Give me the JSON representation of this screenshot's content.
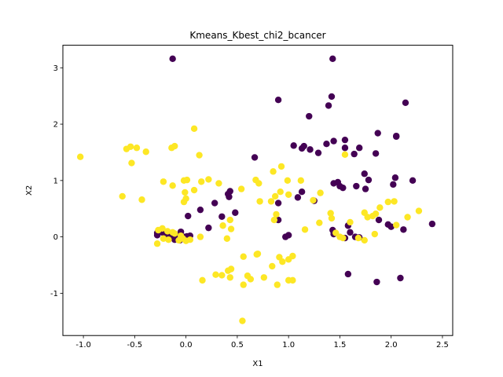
{
  "chart_data": {
    "type": "scatter",
    "title": "Kmeans_Kbest_chi2_bcancer",
    "xlabel": "X1",
    "ylabel": "X2",
    "xlim": [
      -1.2,
      2.6
    ],
    "ylim": [
      -1.75,
      3.4
    ],
    "xticks": [
      "-1.0",
      "-0.5",
      "0.0",
      "0.5",
      "1.0",
      "1.5",
      "2.0",
      "2.5"
    ],
    "yticks": [
      "-1",
      "0",
      "1",
      "2",
      "3"
    ],
    "grid": false,
    "legend": "none",
    "series": [
      {
        "color": "#440154",
        "points": [
          [
            -0.13,
            3.16
          ],
          [
            1.43,
            3.16
          ],
          [
            0.9,
            2.43
          ],
          [
            1.42,
            2.49
          ],
          [
            1.39,
            2.33
          ],
          [
            2.14,
            2.38
          ],
          [
            1.2,
            2.14
          ],
          [
            1.55,
            1.72
          ],
          [
            1.44,
            1.7
          ],
          [
            1.37,
            1.65
          ],
          [
            1.55,
            1.58
          ],
          [
            1.69,
            1.58
          ],
          [
            1.05,
            1.62
          ],
          [
            1.13,
            1.57
          ],
          [
            1.21,
            1.55
          ],
          [
            1.15,
            1.61
          ],
          [
            1.29,
            1.49
          ],
          [
            1.87,
            1.84
          ],
          [
            2.05,
            1.78
          ],
          [
            1.64,
            1.47
          ],
          [
            1.85,
            1.48
          ],
          [
            2.05,
            1.79
          ],
          [
            0.67,
            1.41
          ],
          [
            1.74,
            1.12
          ],
          [
            2.04,
            1.05
          ],
          [
            2.21,
            1.0
          ],
          [
            1.78,
            1.01
          ],
          [
            1.44,
            0.95
          ],
          [
            1.48,
            0.97
          ],
          [
            1.53,
            0.87
          ],
          [
            1.66,
            0.9
          ],
          [
            1.25,
            0.64
          ],
          [
            1.13,
            0.8
          ],
          [
            1.09,
            0.7
          ],
          [
            0.9,
            0.6
          ],
          [
            1.5,
            0.9
          ],
          [
            1.75,
            0.85
          ],
          [
            2.02,
            0.93
          ],
          [
            0.43,
            0.81
          ],
          [
            0.41,
            0.76
          ],
          [
            0.42,
            0.71
          ],
          [
            0.28,
            0.6
          ],
          [
            0.35,
            0.36
          ],
          [
            0.14,
            0.48
          ],
          [
            0.22,
            0.16
          ],
          [
            0.02,
            0.37
          ],
          [
            -0.05,
            0.09
          ],
          [
            -0.09,
            0.02
          ],
          [
            -0.1,
            -0.02
          ],
          [
            -0.12,
            0.0
          ],
          [
            -0.15,
            0.03
          ],
          [
            -0.17,
            0.01
          ],
          [
            -0.19,
            0.06
          ],
          [
            -0.2,
            0.05
          ],
          [
            -0.11,
            -0.05
          ],
          [
            -0.06,
            -0.06
          ],
          [
            -0.02,
            0.0
          ],
          [
            0.01,
            0.01
          ],
          [
            0.04,
            0.02
          ],
          [
            -0.28,
            0.03
          ],
          [
            -0.28,
            0.07
          ],
          [
            -0.23,
            0.08
          ],
          [
            0.48,
            0.43
          ],
          [
            0.9,
            0.3
          ],
          [
            0.97,
            0.0
          ],
          [
            1.0,
            0.03
          ],
          [
            1.58,
            0.2
          ],
          [
            1.6,
            0.08
          ],
          [
            1.55,
            -0.02
          ],
          [
            1.65,
            0.0
          ],
          [
            1.69,
            -0.01
          ],
          [
            1.44,
            0.05
          ],
          [
            1.43,
            0.12
          ],
          [
            1.97,
            0.22
          ],
          [
            1.88,
            0.3
          ],
          [
            2.0,
            0.18
          ],
          [
            2.12,
            0.13
          ],
          [
            2.4,
            0.23
          ],
          [
            1.58,
            -0.66
          ],
          [
            1.86,
            -0.8
          ],
          [
            2.09,
            -0.73
          ]
        ]
      },
      {
        "color": "#fde725",
        "points": [
          [
            -1.03,
            1.42
          ],
          [
            -0.58,
            1.56
          ],
          [
            -0.54,
            1.6
          ],
          [
            -0.48,
            1.58
          ],
          [
            -0.39,
            1.51
          ],
          [
            -0.14,
            1.58
          ],
          [
            -0.11,
            1.61
          ],
          [
            -0.53,
            1.31
          ],
          [
            0.08,
            1.92
          ],
          [
            0.13,
            1.45
          ],
          [
            -0.62,
            0.72
          ],
          [
            -0.43,
            0.66
          ],
          [
            -0.22,
            0.98
          ],
          [
            -0.13,
            0.91
          ],
          [
            -0.02,
            1.0
          ],
          [
            0.01,
            1.01
          ],
          [
            0.15,
            0.98
          ],
          [
            0.22,
            1.02
          ],
          [
            0.32,
            0.95
          ],
          [
            -0.01,
            0.79
          ],
          [
            0.0,
            0.68
          ],
          [
            -0.02,
            0.62
          ],
          [
            0.08,
            0.83
          ],
          [
            0.54,
            0.85
          ],
          [
            0.68,
            1.01
          ],
          [
            0.71,
            0.95
          ],
          [
            0.85,
            1.16
          ],
          [
            0.93,
            1.25
          ],
          [
            0.87,
            0.72
          ],
          [
            0.92,
            0.8
          ],
          [
            0.83,
            0.63
          ],
          [
            0.72,
            0.63
          ],
          [
            0.99,
            1.0
          ],
          [
            1.0,
            0.75
          ],
          [
            1.12,
            1.0
          ],
          [
            1.31,
            0.78
          ],
          [
            1.24,
            0.65
          ],
          [
            1.55,
            1.46
          ],
          [
            1.41,
            0.42
          ],
          [
            1.42,
            0.33
          ],
          [
            1.6,
            0.26
          ],
          [
            1.74,
            0.43
          ],
          [
            1.77,
            0.35
          ],
          [
            1.82,
            0.37
          ],
          [
            1.89,
            0.52
          ],
          [
            1.97,
            0.62
          ],
          [
            2.03,
            0.63
          ],
          [
            2.16,
            0.35
          ],
          [
            2.27,
            0.46
          ],
          [
            1.85,
            0.41
          ],
          [
            1.74,
            -0.06
          ],
          [
            1.84,
            0.05
          ],
          [
            2.05,
            0.21
          ],
          [
            1.46,
            0.07
          ],
          [
            1.5,
            0.0
          ],
          [
            1.53,
            -0.02
          ],
          [
            1.68,
            -0.02
          ],
          [
            0.86,
            0.3
          ],
          [
            0.88,
            0.4
          ],
          [
            1.16,
            0.13
          ],
          [
            1.3,
            0.25
          ],
          [
            0.44,
            0.14
          ],
          [
            0.43,
            0.3
          ],
          [
            0.4,
            -0.03
          ],
          [
            0.36,
            0.2
          ],
          [
            0.14,
            0.0
          ],
          [
            0.04,
            -0.05
          ],
          [
            -0.03,
            -0.03
          ],
          [
            -0.07,
            -0.06
          ],
          [
            -0.13,
            0.08
          ],
          [
            -0.18,
            0.1
          ],
          [
            -0.23,
            0.15
          ],
          [
            -0.27,
            0.12
          ],
          [
            -0.28,
            -0.12
          ],
          [
            -0.22,
            -0.03
          ],
          [
            -0.17,
            -0.05
          ],
          [
            -0.11,
            0.06
          ],
          [
            0.0,
            -0.07
          ],
          [
            -0.05,
            0.02
          ],
          [
            0.56,
            -0.35
          ],
          [
            0.6,
            -0.69
          ],
          [
            0.63,
            -0.75
          ],
          [
            0.7,
            -0.3
          ],
          [
            0.69,
            -0.31
          ],
          [
            0.76,
            -0.72
          ],
          [
            0.84,
            -0.52
          ],
          [
            0.89,
            -0.85
          ],
          [
            0.91,
            -0.36
          ],
          [
            1.0,
            -0.77
          ],
          [
            1.0,
            -0.4
          ],
          [
            1.04,
            -0.34
          ],
          [
            1.04,
            -0.77
          ],
          [
            0.94,
            -0.44
          ],
          [
            0.44,
            -0.57
          ],
          [
            0.41,
            -0.6
          ],
          [
            0.35,
            -0.68
          ],
          [
            0.29,
            -0.67
          ],
          [
            0.43,
            -0.72
          ],
          [
            0.16,
            -0.77
          ],
          [
            0.56,
            -0.85
          ],
          [
            0.55,
            -1.49
          ]
        ]
      }
    ]
  }
}
